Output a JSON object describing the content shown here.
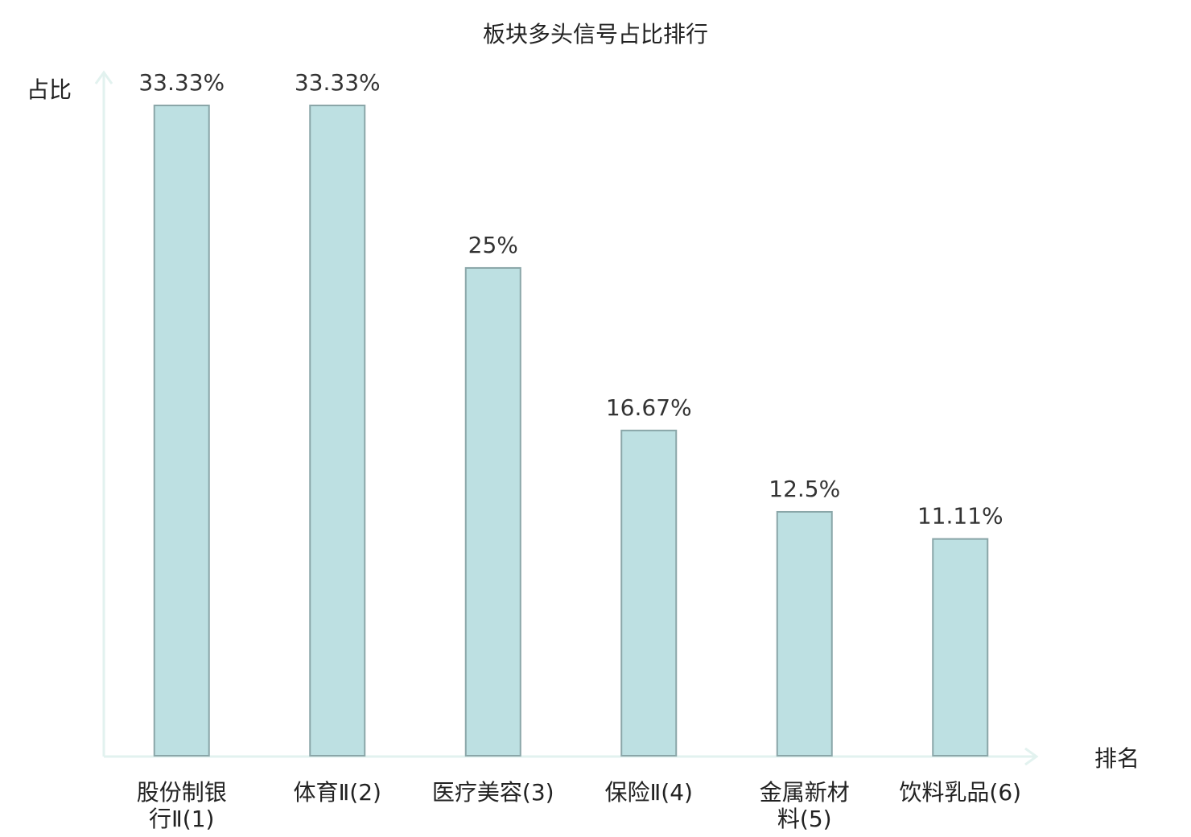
{
  "chart_data": {
    "type": "bar",
    "title": "板块多头信号占比排行",
    "xlabel": "排名",
    "ylabel": "占比",
    "categories": [
      [
        "股份制银",
        "行Ⅱ(1)"
      ],
      [
        "体育Ⅱ(2)"
      ],
      [
        "医疗美容(3)"
      ],
      [
        "保险Ⅱ(4)"
      ],
      [
        "金属新材",
        "料(5)"
      ],
      [
        "饮料乳品(6)"
      ]
    ],
    "values": [
      33.33,
      33.33,
      25,
      16.67,
      12.5,
      11.11
    ],
    "value_labels": [
      "33.33%",
      "33.33%",
      "25%",
      "16.67%",
      "12.5%",
      "11.11%"
    ],
    "highlight_index": 5,
    "ylim": [
      0,
      33.33
    ],
    "grid": false,
    "legend": "none",
    "colors": {
      "bar_fill": "#bde0e2",
      "bar_stroke": "#8aa6a8",
      "axis": "#e2f2ef",
      "label": "#222222",
      "value_label": "#333333",
      "highlight": "#e8191c"
    }
  }
}
